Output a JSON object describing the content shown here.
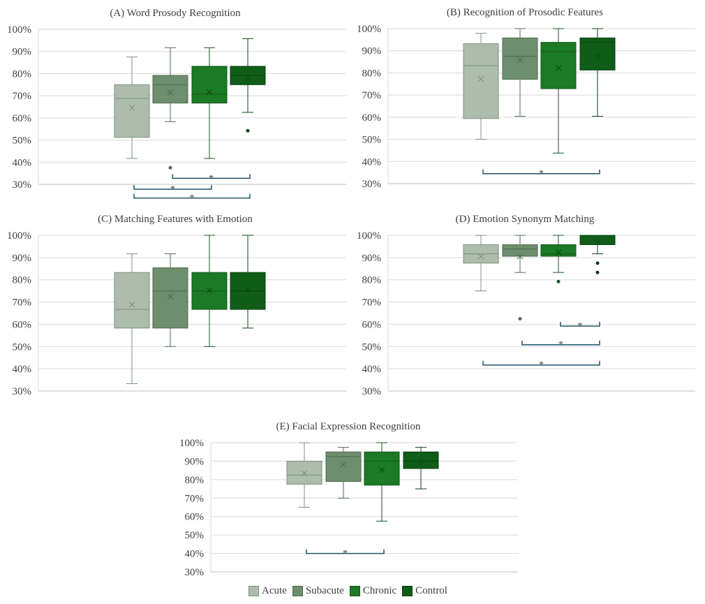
{
  "legend": {
    "items": [
      {
        "name": "Acute",
        "color": "#adbcad"
      },
      {
        "name": "Subacute",
        "color": "#6d8f6d"
      },
      {
        "name": "Chronic",
        "color": "#1b7a25"
      },
      {
        "name": "Control",
        "color": "#0f5d18"
      }
    ]
  },
  "colors": {
    "outline": [
      "#7f8f7f",
      "#506a50",
      "#14561b",
      "#0a4010"
    ],
    "significance": "#1f5468",
    "grid": "#d9d9d9",
    "axis": "#bfbfbf"
  },
  "chart_data": [
    {
      "id": "A",
      "type": "box",
      "title": "(A) Word Prosody Recognition",
      "ylim": [
        30,
        100
      ],
      "yticks": [
        "30%",
        "40%",
        "50%",
        "60%",
        "70%",
        "80%",
        "90%",
        "100%"
      ],
      "series": [
        {
          "name": "Acute",
          "min": 41.7,
          "q1": 51.2,
          "median": 68.8,
          "q3": 75,
          "max": 87.5,
          "mean": 64.6,
          "outliers": []
        },
        {
          "name": "Subacute",
          "min": 58.3,
          "q1": 66.7,
          "median": 75,
          "q3": 79.2,
          "max": 91.7,
          "mean": 71.5,
          "outliers": [
            37.5
          ]
        },
        {
          "name": "Chronic",
          "min": 41.7,
          "q1": 66.7,
          "median": 70.8,
          "q3": 83.3,
          "max": 91.7,
          "mean": 71.7,
          "outliers": []
        },
        {
          "name": "Control",
          "min": 62.5,
          "q1": 75,
          "median": 79.2,
          "q3": 83.3,
          "max": 95.8,
          "mean": 78,
          "outliers": [
            54.2
          ]
        }
      ],
      "significance": [
        {
          "from": "Subacute",
          "to": "Control",
          "level": 32.7,
          "label": "*"
        },
        {
          "from": "Acute",
          "to": "Chronic",
          "level": 27.8,
          "label": "*"
        },
        {
          "from": "Acute",
          "to": "Control",
          "level": 23.8,
          "label": "*"
        }
      ]
    },
    {
      "id": "B",
      "type": "box",
      "title": "(B) Recognition of Prosodic Features",
      "ylim": [
        30,
        100
      ],
      "yticks": [
        "30%",
        "40%",
        "50%",
        "60%",
        "70%",
        "80%",
        "90%",
        "100%"
      ],
      "series": [
        {
          "name": "Acute",
          "min": 50,
          "q1": 59.4,
          "median": 83.3,
          "q3": 93.2,
          "max": 97.9,
          "mean": 77.3,
          "outliers": []
        },
        {
          "name": "Subacute",
          "min": 60.4,
          "q1": 77.1,
          "median": 87.5,
          "q3": 95.8,
          "max": 100,
          "mean": 85.8,
          "outliers": []
        },
        {
          "name": "Chronic",
          "min": 43.8,
          "q1": 72.9,
          "median": 89.6,
          "q3": 93.8,
          "max": 100,
          "mean": 82.3,
          "outliers": []
        },
        {
          "name": "Control",
          "min": 60.4,
          "q1": 81.3,
          "median": 93.8,
          "q3": 95.8,
          "max": 100,
          "mean": 87.5,
          "outliers": []
        }
      ],
      "significance": [
        {
          "from": "Acute",
          "to": "Control",
          "level": 34.5,
          "label": "*"
        }
      ]
    },
    {
      "id": "C",
      "type": "box",
      "title": "(C) Matching Features with Emotion",
      "ylim": [
        30,
        100
      ],
      "yticks": [
        "30%",
        "40%",
        "50%",
        "60%",
        "70%",
        "80%",
        "90%",
        "100%"
      ],
      "series": [
        {
          "name": "Acute",
          "min": 33.3,
          "q1": 58.3,
          "median": 66.7,
          "q3": 83.3,
          "max": 91.7,
          "mean": 68.8,
          "outliers": []
        },
        {
          "name": "Subacute",
          "min": 50,
          "q1": 58.3,
          "median": 75,
          "q3": 85.4,
          "max": 91.7,
          "mean": 72.5,
          "outliers": []
        },
        {
          "name": "Chronic",
          "min": 50,
          "q1": 66.7,
          "median": 75,
          "q3": 83.3,
          "max": 100,
          "mean": 75.3,
          "outliers": []
        },
        {
          "name": "Control",
          "min": 58.3,
          "q1": 66.7,
          "median": 75,
          "q3": 83.3,
          "max": 100,
          "mean": 75.8,
          "outliers": []
        }
      ],
      "significance": []
    },
    {
      "id": "D",
      "type": "box",
      "title": "(D) Emotion Synonym Matching",
      "ylim": [
        30,
        100
      ],
      "yticks": [
        "30%",
        "40%",
        "50%",
        "60%",
        "70%",
        "80%",
        "90%",
        "100%"
      ],
      "series": [
        {
          "name": "Acute",
          "min": 75,
          "q1": 87.5,
          "median": 91.7,
          "q3": 95.8,
          "max": 100,
          "mean": 90.5,
          "outliers": []
        },
        {
          "name": "Subacute",
          "min": 83.3,
          "q1": 90.6,
          "median": 93.8,
          "q3": 95.8,
          "max": 100,
          "mean": 90.5,
          "outliers": [
            62.5
          ]
        },
        {
          "name": "Chronic",
          "min": 83.3,
          "q1": 90.6,
          "median": 91.7,
          "q3": 95.8,
          "max": 100,
          "mean": 92.3,
          "outliers": [
            79.2
          ]
        },
        {
          "name": "Control",
          "min": 91.7,
          "q1": 95.8,
          "median": 100,
          "q3": 100,
          "max": 100,
          "mean": 96.9,
          "outliers": [
            87.5,
            83.3
          ]
        }
      ],
      "significance": [
        {
          "from": "Chronic",
          "to": "Control",
          "level": 59.2,
          "label": "*"
        },
        {
          "from": "Subacute",
          "to": "Control",
          "level": 50.8,
          "label": "*"
        },
        {
          "from": "Acute",
          "to": "Control",
          "level": 41.7,
          "label": "*"
        }
      ]
    },
    {
      "id": "E",
      "type": "box",
      "title": "(E) Facial Expression Recognition",
      "ylim": [
        30,
        100
      ],
      "yticks": [
        "30%",
        "40%",
        "50%",
        "60%",
        "70%",
        "80%",
        "90%",
        "100%"
      ],
      "series": [
        {
          "name": "Acute",
          "min": 65,
          "q1": 77.5,
          "median": 82.5,
          "q3": 90,
          "max": 100,
          "mean": 83.5,
          "outliers": []
        },
        {
          "name": "Subacute",
          "min": 70,
          "q1": 79,
          "median": 92.5,
          "q3": 95,
          "max": 97.5,
          "mean": 88.3,
          "outliers": []
        },
        {
          "name": "Chronic",
          "min": 57.5,
          "q1": 77,
          "median": 90,
          "q3": 95,
          "max": 100,
          "mean": 85.2,
          "outliers": []
        },
        {
          "name": "Control",
          "min": 75,
          "q1": 86,
          "median": 90,
          "q3": 95,
          "max": 97.5,
          "mean": 89.7,
          "outliers": []
        }
      ],
      "significance": [
        {
          "from": "Acute",
          "to": "Chronic",
          "level": 40,
          "label": "*"
        }
      ]
    }
  ]
}
